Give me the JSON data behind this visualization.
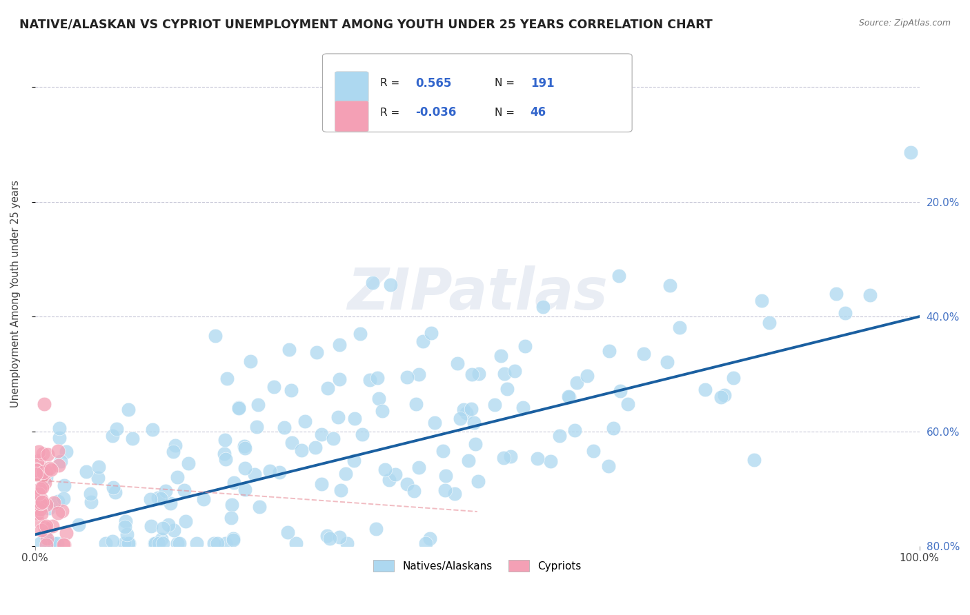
{
  "title": "NATIVE/ALASKAN VS CYPRIOT UNEMPLOYMENT AMONG YOUTH UNDER 25 YEARS CORRELATION CHART",
  "source": "Source: ZipAtlas.com",
  "ylabel": "Unemployment Among Youth under 25 years",
  "xlim": [
    0,
    1.0
  ],
  "ylim": [
    0,
    0.88
  ],
  "xticks": [
    0.0,
    1.0
  ],
  "xticklabels": [
    "0.0%",
    "100.0%"
  ],
  "ytick_positions": [
    0.0,
    0.2,
    0.4,
    0.6,
    0.8
  ],
  "right_ytick_labels": [
    "80.0%",
    "60.0%",
    "40.0%",
    "20.0%",
    ""
  ],
  "blue_R": 0.565,
  "blue_N": 191,
  "pink_R": -0.036,
  "pink_N": 46,
  "blue_color": "#add8f0",
  "pink_color": "#f4a0b5",
  "trend_blue": "#1a5fa0",
  "trend_pink": "#e8909a",
  "legend_blue_label": "Natives/Alaskans",
  "legend_pink_label": "Cypriots",
  "background_color": "#ffffff",
  "grid_color": "#c8c8d8",
  "watermark": "ZIPatlas",
  "blue_seed": 42,
  "pink_seed": 99,
  "blue_trend_x0": 0.0,
  "blue_trend_y0": 0.02,
  "blue_trend_x1": 1.0,
  "blue_trend_y1": 0.4,
  "pink_trend_x0": 0.0,
  "pink_trend_y0": 0.115,
  "pink_trend_x1": 0.15,
  "pink_trend_y1": 0.09
}
